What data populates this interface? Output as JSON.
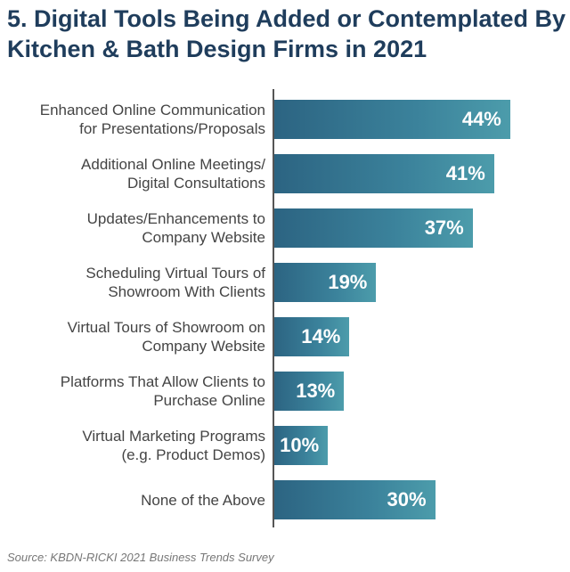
{
  "chart_data": {
    "type": "bar",
    "orientation": "horizontal",
    "title": "5. Digital Tools Being Added or Contemplated By Kitchen & Bath Design Firms in 2021",
    "categories": [
      "Enhanced Online Communication\nfor Presentations/Proposals",
      "Additional Online Meetings/\nDigital Consultations",
      "Updates/Enhancements to\nCompany Website",
      "Scheduling Virtual Tours of\nShowroom With Clients",
      "Virtual Tours of Showroom on\nCompany Website",
      "Platforms That Allow Clients to\nPurchase Online",
      "Virtual Marketing Programs\n(e.g. Product Demos)",
      "None of the Above"
    ],
    "values": [
      44,
      41,
      37,
      19,
      14,
      13,
      10,
      30
    ],
    "value_labels": [
      "44%",
      "41%",
      "37%",
      "19%",
      "14%",
      "13%",
      "10%",
      "30%"
    ],
    "color": "#3b829b",
    "source": "Source: KBDN-RICKI 2021 Business Trends Survey"
  }
}
